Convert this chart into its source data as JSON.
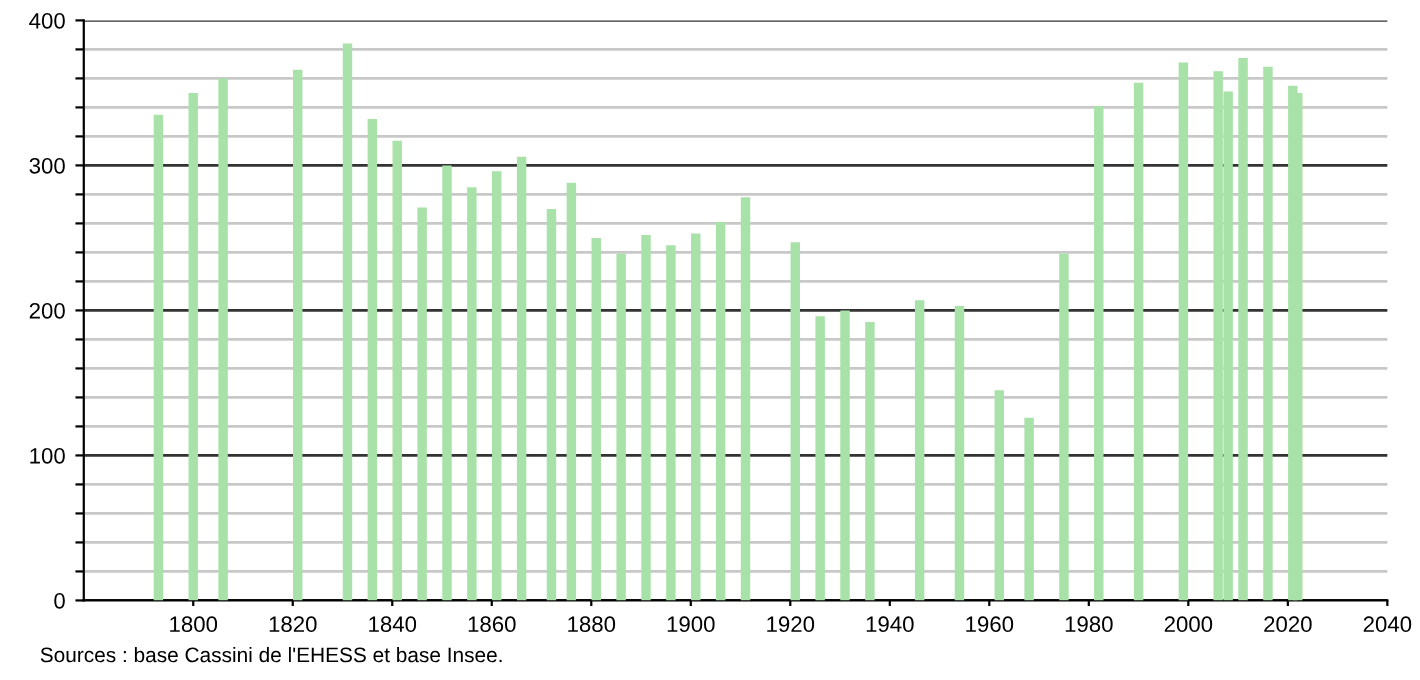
{
  "chart_data": {
    "type": "bar",
    "color": "#a8e2a8",
    "x": [
      1793,
      1800,
      1806,
      1821,
      1831,
      1836,
      1841,
      1846,
      1851,
      1856,
      1861,
      1866,
      1872,
      1876,
      1881,
      1886,
      1891,
      1896,
      1901,
      1906,
      1911,
      1921,
      1926,
      1931,
      1936,
      1946,
      1954,
      1962,
      1968,
      1975,
      1982,
      1990,
      1999,
      2006,
      2008,
      2011,
      2016,
      2021,
      2022
    ],
    "values": [
      335,
      350,
      360,
      366,
      384,
      332,
      317,
      271,
      300,
      285,
      296,
      306,
      270,
      288,
      250,
      239,
      252,
      245,
      253,
      261,
      278,
      247,
      196,
      200,
      192,
      207,
      203,
      145,
      126,
      239,
      341,
      357,
      371,
      365,
      351,
      374,
      368,
      355,
      350
    ],
    "xlim": [
      1778,
      2040
    ],
    "xticks": [
      1800,
      1820,
      1840,
      1860,
      1880,
      1900,
      1920,
      1940,
      1960,
      1980,
      2000,
      2020,
      2040
    ],
    "ylim": [
      0,
      400
    ],
    "yticks": [
      0,
      {
        "value": 20,
        "label": null
      },
      {
        "value": 40,
        "label": null
      },
      {
        "value": 60,
        "label": null
      },
      {
        "value": 80,
        "label": null
      },
      100,
      {
        "value": 120,
        "label": null
      },
      {
        "value": 140,
        "label": null
      },
      {
        "value": 160,
        "label": null
      },
      {
        "value": 180,
        "label": null
      },
      200,
      {
        "value": 220,
        "label": null
      },
      {
        "value": 240,
        "label": null
      },
      {
        "value": 260,
        "label": null
      },
      {
        "value": 280,
        "label": null
      },
      300,
      {
        "value": 320,
        "label": null
      },
      {
        "value": 340,
        "label": null
      },
      {
        "value": 360,
        "label": null
      },
      {
        "value": 380,
        "label": null
      },
      400
    ],
    "grid": "y",
    "annotations": [
      "Sources : base Cassini de l'EHESS et base Insee."
    ]
  }
}
